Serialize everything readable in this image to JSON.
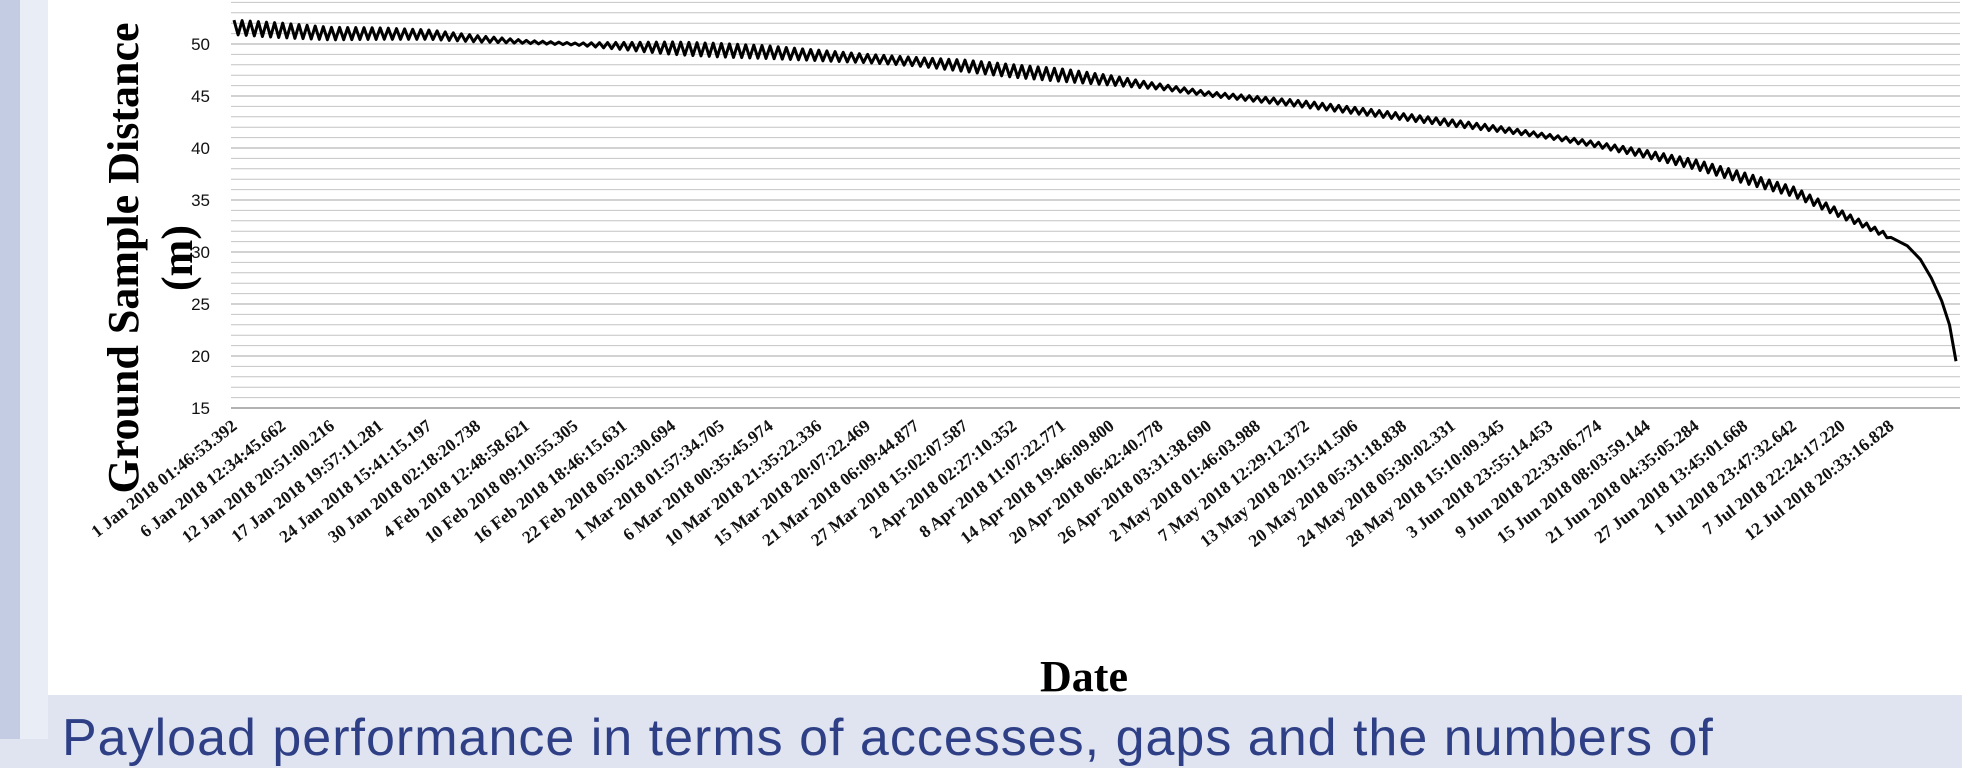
{
  "caption": "Payload performance in terms of accesses, gaps and the numbers of",
  "chart_data": {
    "type": "line",
    "title": "",
    "xlabel": "Date",
    "ylabel": "Ground Sample Distance (m)",
    "ylabel_lines": [
      "Ground Sample Distance",
      "(m)"
    ],
    "ylim": [
      15,
      55
    ],
    "yticks": [
      15,
      20,
      25,
      30,
      35,
      40,
      45,
      50
    ],
    "grid": true,
    "line_color": "#000000",
    "categories": [
      "1 Jan 2018 01:46:53.392",
      "6 Jan 2018 12:34:45.662",
      "12 Jan 2018 20:51:00.216",
      "17 Jan 2018 19:57:11.281",
      "24 Jan 2018 15:41:15.197",
      "30 Jan 2018 02:18:20.738",
      "4 Feb 2018 12:48:58.621",
      "10 Feb 2018 09:10:55.305",
      "16 Feb 2018 18:46:15.631",
      "22 Feb 2018 05:02:30.694",
      "1 Mar 2018 01:57:34.705",
      "6 Mar 2018 00:35:45.974",
      "10 Mar 2018 21:35:22.336",
      "15 Mar 2018 20:07:22.469",
      "21 Mar 2018 06:09:44.877",
      "27 Mar 2018 15:02:07.587",
      "2 Apr 2018 02:27:10.352",
      "8 Apr 2018 11:07:22.771",
      "14 Apr 2018 19:46:09.800",
      "20 Apr 2018 06:42:40.778",
      "26 Apr 2018 03:31:38.690",
      "2 May 2018 01:46:03.988",
      "7 May 2018 12:29:12.372",
      "13 May 2018 20:15:41.506",
      "20 May 2018 05:31:18.838",
      "24 May 2018 05:30:02.331",
      "28 May 2018 15:10:09.345",
      "3 Jun 2018 23:55:14.453",
      "9 Jun 2018 22:33:06.774",
      "15 Jun 2018 08:03:59.144",
      "21 Jun 2018 04:35:05.284",
      "27 Jun 2018 13:45:01.668",
      "1 Jul 2018 23:47:32.642",
      "7 Jul 2018 22:24:17.220",
      "12 Jul 2018 20:33:16.828"
    ],
    "values": [
      51.6,
      51.3,
      51.0,
      51.0,
      50.9,
      50.5,
      50.2,
      50.0,
      49.8,
      49.6,
      49.4,
      49.2,
      48.9,
      48.6,
      48.3,
      47.9,
      47.4,
      47.0,
      46.5,
      45.9,
      45.2,
      44.7,
      44.2,
      43.6,
      43.0,
      42.4,
      41.8,
      41.1,
      40.3,
      39.4,
      38.4,
      37.1,
      35.8,
      33.6,
      31.4
    ],
    "end_value": 19.5,
    "oscillation": [
      0.7,
      0.7,
      0.6,
      0.55,
      0.45,
      0.3,
      0.15,
      0.1,
      0.35,
      0.6,
      0.65,
      0.6,
      0.5,
      0.4,
      0.4,
      0.55,
      0.6,
      0.6,
      0.45,
      0.25,
      0.2,
      0.25,
      0.3,
      0.3,
      0.3,
      0.3,
      0.25,
      0.2,
      0.25,
      0.35,
      0.45,
      0.5,
      0.45,
      0.35,
      0.2
    ]
  }
}
